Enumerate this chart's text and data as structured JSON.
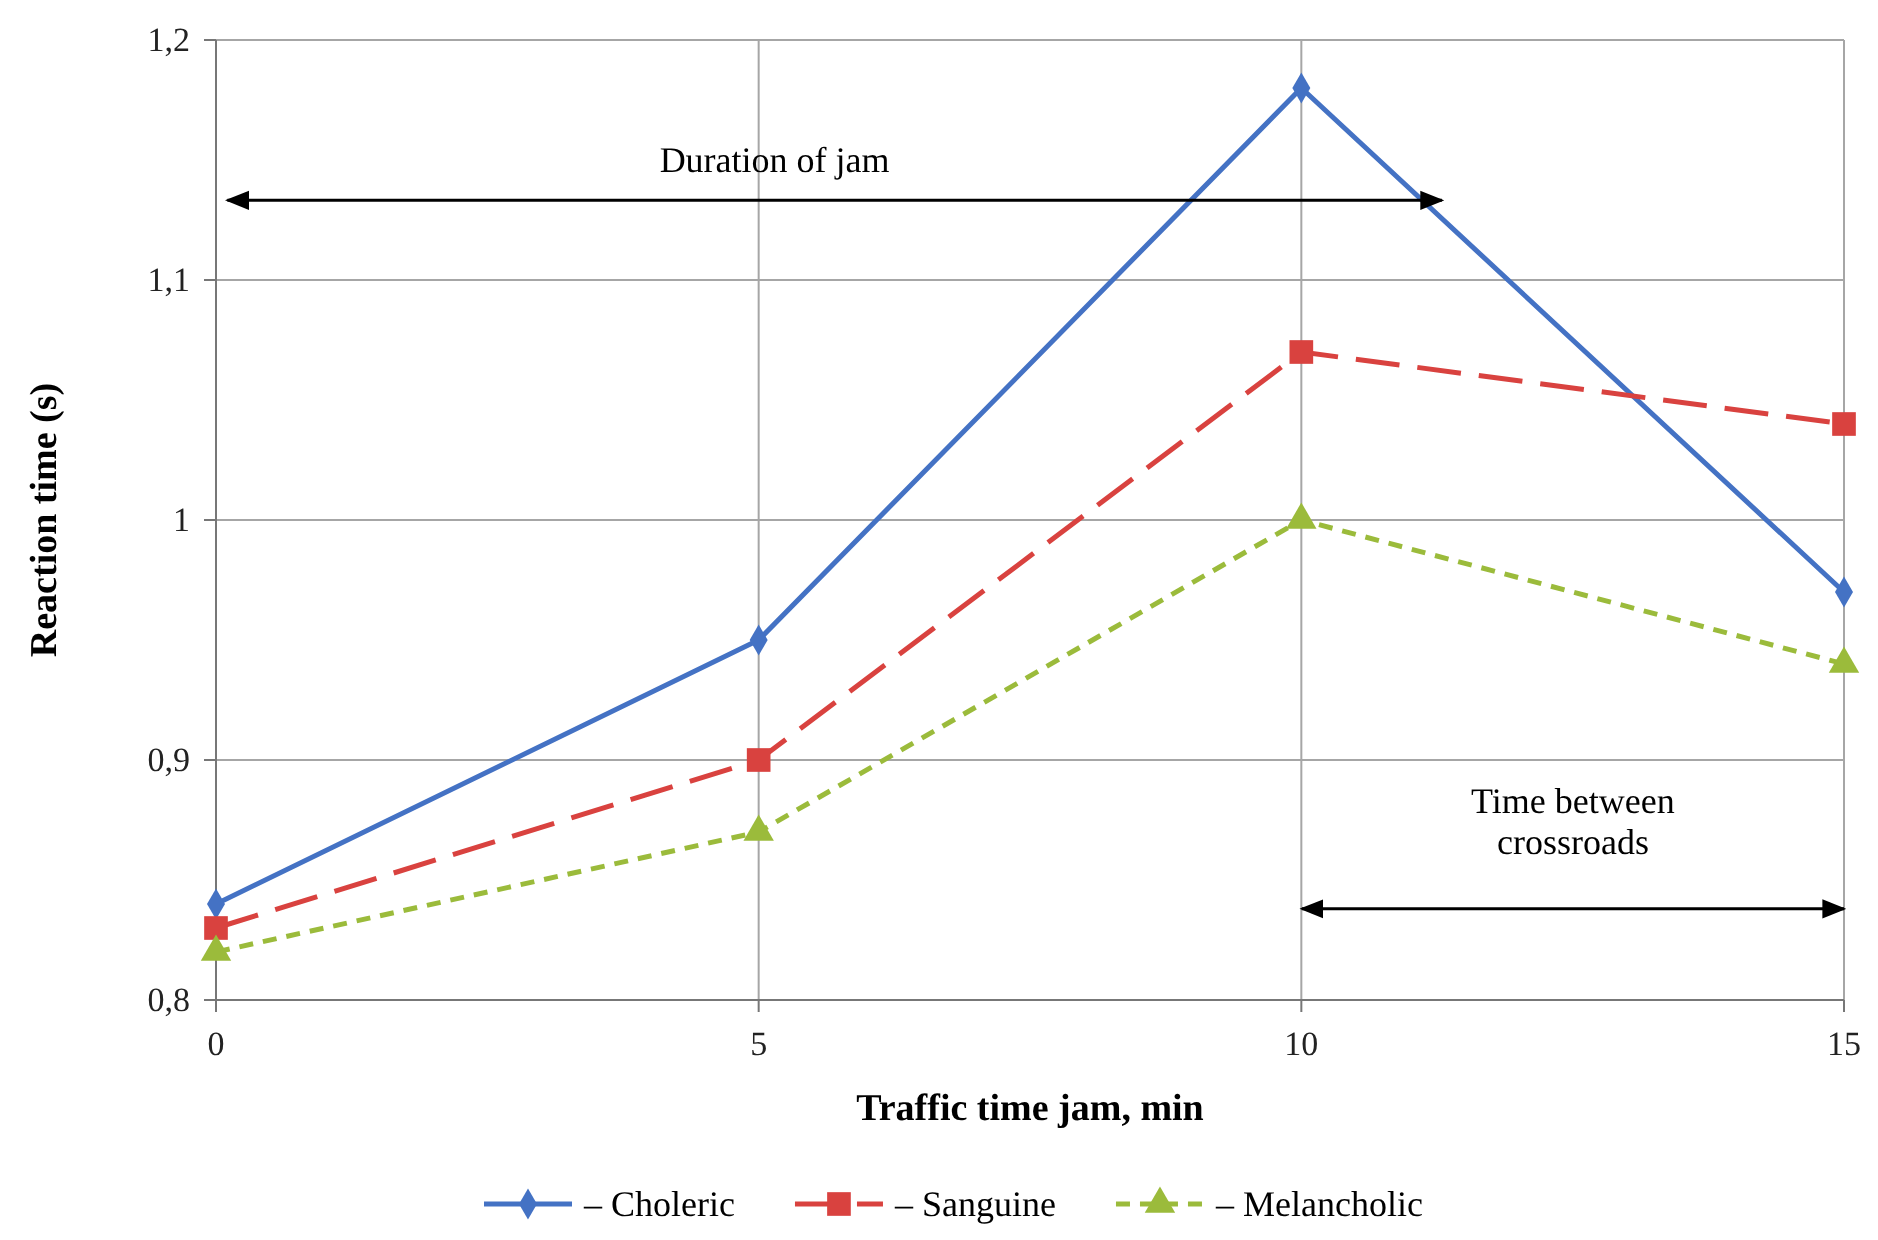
{
  "chart_data": {
    "type": "line",
    "xlabel": "Traffic time jam, min",
    "ylabel": "Reaction time (s)",
    "x": [
      0,
      5,
      10,
      15
    ],
    "xlim": [
      0,
      15
    ],
    "xticks": [
      0,
      5,
      10,
      15
    ],
    "ylim": [
      0.8,
      1.2
    ],
    "yticks": [
      {
        "value": 0.8,
        "label": "0,8"
      },
      {
        "value": 0.9,
        "label": "0,9"
      },
      {
        "value": 1,
        "label": "1"
      },
      {
        "value": 1.1,
        "label": "1,1"
      },
      {
        "value": 1.2,
        "label": "1,2"
      }
    ],
    "grid": true,
    "legend": "bottom",
    "series": [
      {
        "name": "– Choleric",
        "color": "#4472c4",
        "values": [
          0.84,
          0.95,
          1.18,
          0.97
        ],
        "marker": "diamond",
        "line_style": "solid"
      },
      {
        "name": "– Sanguine",
        "color": "#d9423f",
        "values": [
          0.83,
          0.9,
          1.07,
          1.04
        ],
        "marker": "square",
        "line_style": "dashed"
      },
      {
        "name": "– Melancholic",
        "color": "#9bbb3b",
        "values": [
          0.82,
          0.87,
          1.0,
          0.94
        ],
        "marker": "triangle",
        "line_style": "dotted"
      }
    ],
    "annotations": [
      "Duration of jam",
      "Time between crossroads"
    ]
  }
}
